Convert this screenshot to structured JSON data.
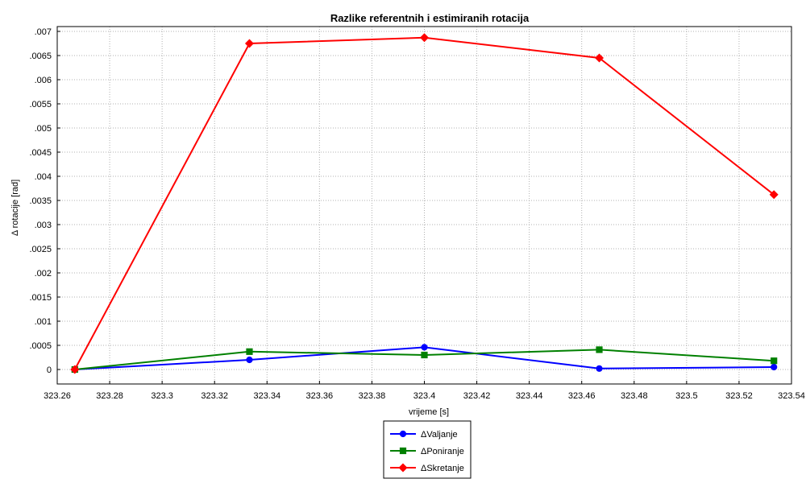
{
  "chart_data": {
    "type": "line",
    "title": "Razlike referentnih i estimiranih rotacija",
    "xlabel": "vrijeme [s]",
    "ylabel": "Δ rotacije [rad]",
    "xlim": [
      323.26,
      323.54
    ],
    "ylim": [
      -0.0003,
      0.0071
    ],
    "x_ticks": [
      323.26,
      323.28,
      323.3,
      323.32,
      323.34,
      323.36,
      323.38,
      323.4,
      323.42,
      323.44,
      323.46,
      323.48,
      323.5,
      323.52,
      323.54
    ],
    "x_tick_labels": [
      "323.26",
      "323.28",
      "323.3",
      "323.32",
      "323.34",
      "323.36",
      "323.38",
      "323.4",
      "323.42",
      "323.44",
      "323.46",
      "323.48",
      "323.5",
      "323.52",
      "323.54"
    ],
    "y_ticks": [
      0,
      0.0005,
      0.001,
      0.0015,
      0.002,
      0.0025,
      0.003,
      0.0035,
      0.004,
      0.0045,
      0.005,
      0.0055,
      0.006,
      0.0065,
      0.007
    ],
    "y_tick_labels": [
      "0",
      ".0005",
      ".001",
      ".0015",
      ".002",
      ".0025",
      ".003",
      ".0035",
      ".004",
      ".0045",
      ".005",
      ".0055",
      ".006",
      ".0065",
      ".007"
    ],
    "grid": true,
    "legend_position": "bottom-center",
    "x": [
      323.2667,
      323.3333,
      323.4,
      323.4667,
      323.5333
    ],
    "series": [
      {
        "name": "ΔValjanje",
        "color": "#0000ff",
        "marker": "circle",
        "values": [
          0.0,
          0.0002,
          0.00046,
          2e-05,
          5e-05
        ]
      },
      {
        "name": "ΔPoniranje",
        "color": "#008000",
        "marker": "square",
        "values": [
          0.0,
          0.00037,
          0.0003,
          0.00041,
          0.00018
        ]
      },
      {
        "name": "ΔSkretanje",
        "color": "#ff0000",
        "marker": "diamond",
        "values": [
          0.0,
          0.00675,
          0.00687,
          0.00645,
          0.00362
        ]
      }
    ]
  }
}
